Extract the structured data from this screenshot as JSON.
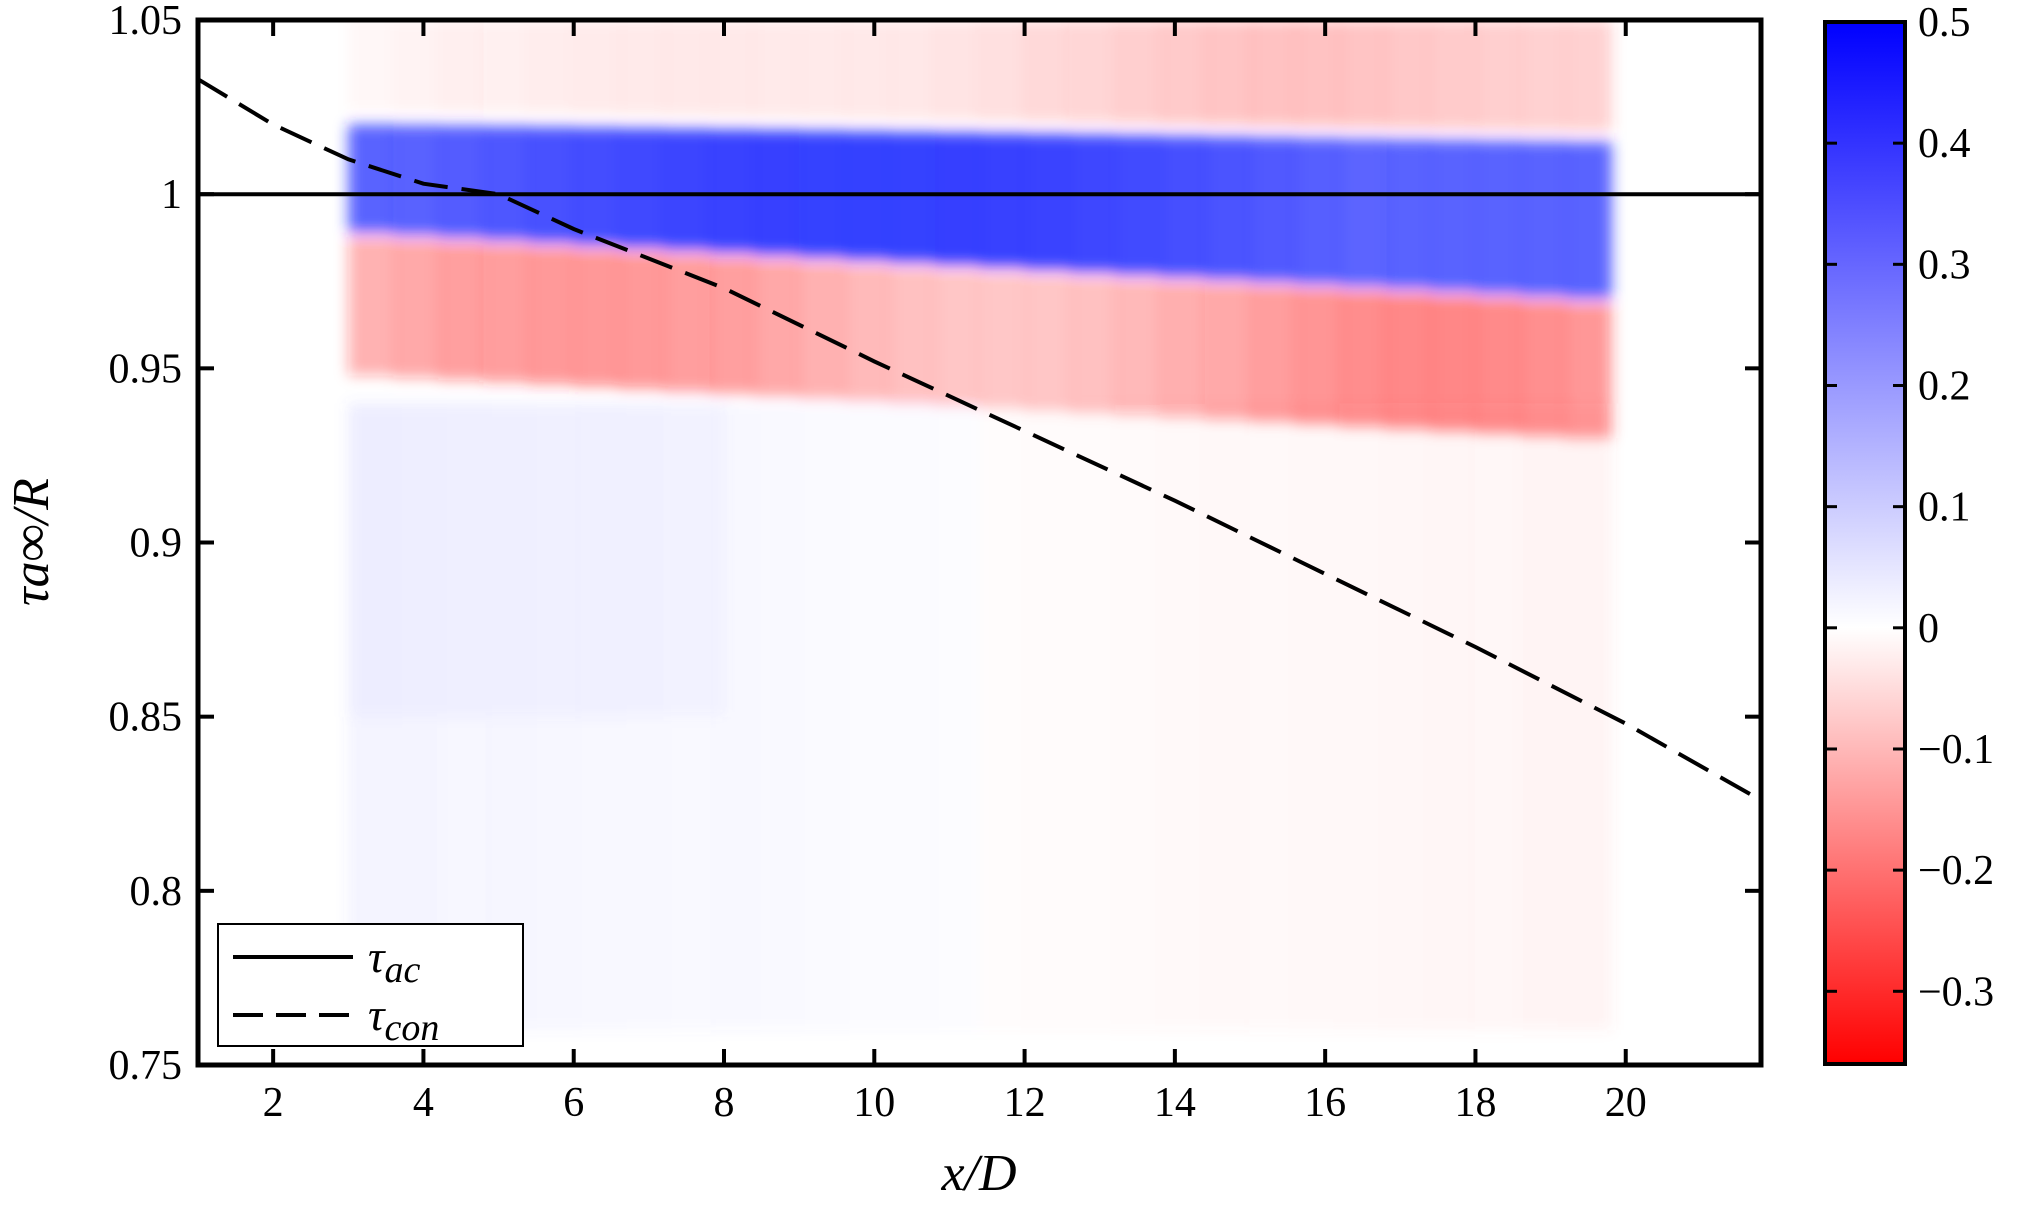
{
  "chart_data": {
    "type": "heatmap",
    "title": "",
    "xlabel": "x/D",
    "ylabel": "τa∞/R",
    "xlim": [
      1,
      21.8
    ],
    "ylim": [
      0.75,
      1.05
    ],
    "x_ticks": [
      2,
      4,
      6,
      8,
      10,
      12,
      14,
      16,
      18,
      20
    ],
    "y_ticks": [
      0.75,
      0.8,
      0.85,
      0.9,
      0.95,
      1,
      1.05
    ],
    "y_tick_labels": [
      "0.75",
      "0.8",
      "0.85",
      "0.9",
      "0.95",
      "1",
      "1.05"
    ],
    "heatmap_x_range": [
      3,
      19.8
    ],
    "colorbar": {
      "range": [
        -0.36,
        0.5
      ],
      "ticks": [
        -0.3,
        -0.2,
        -0.1,
        0,
        0.1,
        0.2,
        0.3,
        0.4,
        0.5
      ],
      "tick_labels": [
        "−0.3",
        "−0.2",
        "−0.1",
        "0",
        "0.1",
        "0.2",
        "0.3",
        "0.4",
        "0.5"
      ],
      "colormap": [
        "#ff0000",
        "#ffffff",
        "#0000ff"
      ]
    },
    "series": [
      {
        "name": "τac",
        "style": "solid",
        "x": [
          1,
          21.8
        ],
        "y": [
          1,
          1
        ]
      },
      {
        "name": "τcon",
        "style": "dashed",
        "x": [
          1,
          2,
          3,
          4,
          5,
          6,
          8,
          10,
          12,
          14,
          16,
          18,
          20,
          21.8
        ],
        "y": [
          1.033,
          1.02,
          1.01,
          1.003,
          1.0,
          0.99,
          0.973,
          0.952,
          0.932,
          0.912,
          0.891,
          0.87,
          0.848,
          0.826
        ]
      }
    ],
    "legend_position": "bottom-left"
  },
  "legend": {
    "items": [
      {
        "symbol": "τ",
        "sub": "ac"
      },
      {
        "symbol": "τ",
        "sub": "con"
      }
    ]
  }
}
